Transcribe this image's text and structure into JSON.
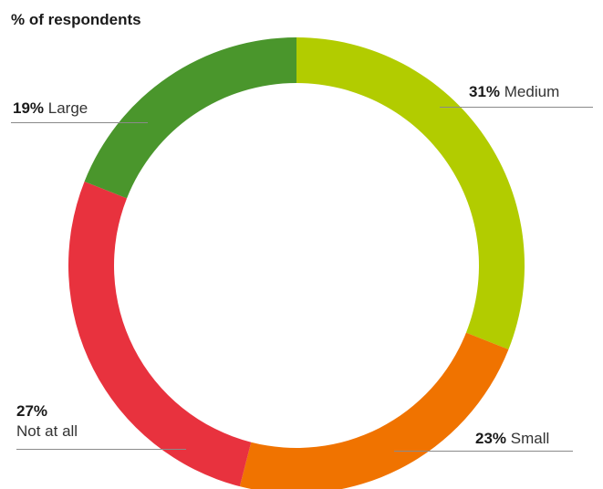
{
  "chart_data": {
    "type": "pie",
    "title": "% of respondents",
    "categories": [
      "Medium",
      "Small",
      "Not at all",
      "Large"
    ],
    "values": [
      31,
      23,
      27,
      19
    ],
    "value_labels": [
      "31%",
      "23%",
      "27%",
      "19%"
    ],
    "colors": [
      "#b2cc00",
      "#f07300",
      "#e8323e",
      "#4a962c"
    ],
    "donut": true,
    "start_angle_deg": 0,
    "direction": "clockwise",
    "legend": "none"
  }
}
